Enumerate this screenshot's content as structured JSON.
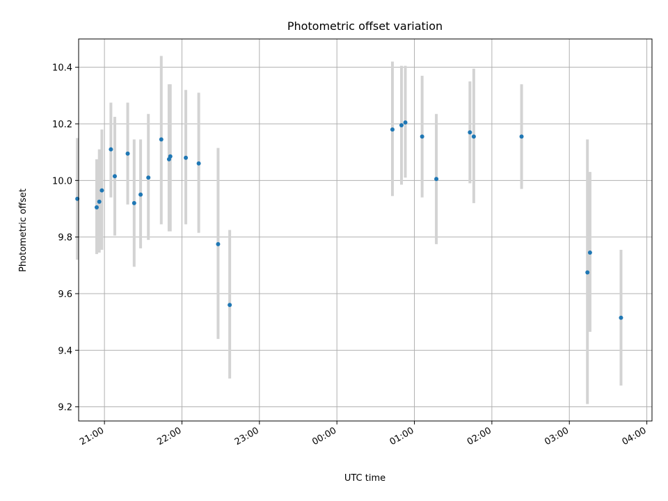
{
  "chart_data": {
    "type": "scatter",
    "title": "Photometric offset variation",
    "xlabel": "UTC time",
    "ylabel": "Photometric offset",
    "x_axis_kind": "time",
    "xlim": [
      "20:40",
      "04:04"
    ],
    "ylim": [
      9.15,
      10.5
    ],
    "x_ticks": [
      "21:00",
      "22:00",
      "23:00",
      "00:00",
      "01:00",
      "02:00",
      "03:00",
      "04:00"
    ],
    "y_ticks": [
      "9.2",
      "9.4",
      "9.6",
      "9.8",
      "10.0",
      "10.2",
      "10.4"
    ],
    "grid": true,
    "colors": {
      "marker": "#1f77b4",
      "errorbar": "#d3d3d3",
      "grid": "#b0b0b0",
      "axes": "#000000"
    },
    "series": [
      {
        "points": [
          {
            "x": "20:39",
            "y": 9.935,
            "ylow": 9.72,
            "yhigh": 10.15
          },
          {
            "x": "20:54",
            "y": 9.905,
            "ylow": 9.74,
            "yhigh": 10.075
          },
          {
            "x": "20:56",
            "y": 9.925,
            "ylow": 9.745,
            "yhigh": 10.11
          },
          {
            "x": "20:58",
            "y": 9.965,
            "ylow": 9.755,
            "yhigh": 10.18
          },
          {
            "x": "21:05",
            "y": 10.11,
            "ylow": 9.94,
            "yhigh": 10.275
          },
          {
            "x": "21:08",
            "y": 10.015,
            "ylow": 9.805,
            "yhigh": 10.225
          },
          {
            "x": "21:18",
            "y": 10.095,
            "ylow": 9.915,
            "yhigh": 10.275
          },
          {
            "x": "21:23",
            "y": 9.92,
            "ylow": 9.695,
            "yhigh": 10.145
          },
          {
            "x": "21:28",
            "y": 9.95,
            "ylow": 9.76,
            "yhigh": 10.145
          },
          {
            "x": "21:34",
            "y": 10.01,
            "ylow": 9.79,
            "yhigh": 10.235
          },
          {
            "x": "21:44",
            "y": 10.145,
            "ylow": 9.845,
            "yhigh": 10.44
          },
          {
            "x": "21:50",
            "y": 10.075,
            "ylow": 9.82,
            "yhigh": 10.34
          },
          {
            "x": "21:51",
            "y": 10.085,
            "ylow": 9.82,
            "yhigh": 10.34
          },
          {
            "x": "22:03",
            "y": 10.08,
            "ylow": 9.845,
            "yhigh": 10.32
          },
          {
            "x": "22:13",
            "y": 10.06,
            "ylow": 9.815,
            "yhigh": 10.31
          },
          {
            "x": "22:28",
            "y": 9.775,
            "ylow": 9.44,
            "yhigh": 10.115
          },
          {
            "x": "22:37",
            "y": 9.56,
            "ylow": 9.3,
            "yhigh": 9.825
          },
          {
            "x": "00:43",
            "y": 10.18,
            "ylow": 9.945,
            "yhigh": 10.42
          },
          {
            "x": "00:50",
            "y": 10.195,
            "ylow": 9.985,
            "yhigh": 10.405
          },
          {
            "x": "00:53",
            "y": 10.205,
            "ylow": 10.01,
            "yhigh": 10.405
          },
          {
            "x": "01:06",
            "y": 10.155,
            "ylow": 9.94,
            "yhigh": 10.37
          },
          {
            "x": "01:17",
            "y": 10.005,
            "ylow": 9.775,
            "yhigh": 10.235
          },
          {
            "x": "01:43",
            "y": 10.17,
            "ylow": 9.99,
            "yhigh": 10.35
          },
          {
            "x": "01:46",
            "y": 10.155,
            "ylow": 9.92,
            "yhigh": 10.395
          },
          {
            "x": "02:23",
            "y": 10.155,
            "ylow": 9.97,
            "yhigh": 10.34
          },
          {
            "x": "03:14",
            "y": 9.675,
            "ylow": 9.21,
            "yhigh": 10.145
          },
          {
            "x": "03:16",
            "y": 9.745,
            "ylow": 9.465,
            "yhigh": 10.03
          },
          {
            "x": "03:40",
            "y": 9.515,
            "ylow": 9.275,
            "yhigh": 9.755
          }
        ]
      }
    ]
  }
}
